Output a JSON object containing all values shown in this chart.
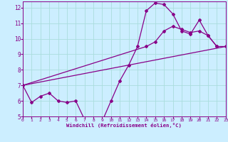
{
  "xlabel": "Windchill (Refroidissement éolien,°C)",
  "bg_color": "#cceeff",
  "grid_color": "#aadddd",
  "line_color": "#880088",
  "xlim": [
    0,
    23
  ],
  "ylim": [
    5,
    12.4
  ],
  "xticks": [
    0,
    1,
    2,
    3,
    4,
    5,
    6,
    7,
    8,
    9,
    10,
    11,
    12,
    13,
    14,
    15,
    16,
    17,
    18,
    19,
    20,
    21,
    22,
    23
  ],
  "yticks": [
    5,
    6,
    7,
    8,
    9,
    10,
    11,
    12
  ],
  "curve1_x": [
    0,
    1,
    2,
    3,
    4,
    5,
    6,
    7,
    8,
    9,
    10,
    11,
    12,
    13,
    14,
    15,
    16,
    17,
    18,
    19,
    20,
    21,
    22
  ],
  "curve1_y": [
    7.0,
    5.9,
    6.3,
    6.5,
    6.0,
    5.9,
    6.0,
    4.8,
    4.7,
    4.7,
    6.0,
    7.3,
    8.3,
    9.5,
    11.8,
    12.3,
    12.2,
    11.6,
    10.5,
    10.3,
    11.2,
    10.2,
    9.5
  ],
  "curve2_x": [
    0,
    23
  ],
  "curve2_y": [
    7.0,
    9.5
  ],
  "curve3_x": [
    0,
    14,
    15,
    16,
    17,
    18,
    19,
    20,
    21,
    22,
    23
  ],
  "curve3_y": [
    7.0,
    9.5,
    9.8,
    10.5,
    10.8,
    10.6,
    10.4,
    10.5,
    10.2,
    9.5,
    9.5
  ]
}
